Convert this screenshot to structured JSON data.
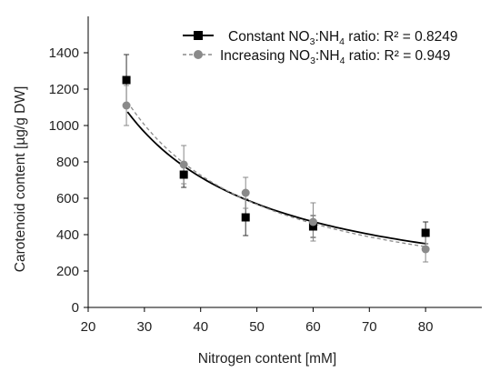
{
  "chart_data": {
    "type": "scatter",
    "xlabel": "Nitrogen content [mM]",
    "ylabel": "Carotenoid content [µg/g DW]",
    "xlim": [
      20,
      90
    ],
    "ylim": [
      0,
      1600
    ],
    "xticks": [
      20,
      30,
      40,
      50,
      60,
      70,
      80
    ],
    "yticks": [
      0,
      200,
      400,
      600,
      800,
      1000,
      1200,
      1400
    ],
    "grid": false,
    "legend_position": "top-right",
    "series": [
      {
        "name": "Constant NO3:NH4 ratio: R² = 0.8249",
        "legend": {
          "pre": "Constant NO",
          "sub1": "3",
          "mid": ":NH",
          "sub2": "4",
          "post": " ratio: R² = 0.8249"
        },
        "marker": "square",
        "color": "#000000",
        "trend_style": "solid",
        "trend_x": [
          27,
          80
        ],
        "points": [
          {
            "x": 26.8,
            "y": 1250,
            "err": 140
          },
          {
            "x": 37,
            "y": 730,
            "err": 70
          },
          {
            "x": 48,
            "y": 495,
            "err": 100
          },
          {
            "x": 60,
            "y": 445,
            "err": 60
          },
          {
            "x": 80,
            "y": 410,
            "err": 60
          }
        ]
      },
      {
        "name": "Increasing NO3:NH4 ratio: R² = 0.949",
        "legend": {
          "pre": "Increasing NO",
          "sub1": "3",
          "mid": ":NH",
          "sub2": "4",
          "post": " ratio: R² = 0.949"
        },
        "marker": "circle",
        "color": "#8a8a8a",
        "trend_style": "dashed",
        "trend_x": [
          27,
          80
        ],
        "points": [
          {
            "x": 26.8,
            "y": 1110,
            "err": 110
          },
          {
            "x": 37,
            "y": 785,
            "err": 105
          },
          {
            "x": 48,
            "y": 630,
            "err": 85
          },
          {
            "x": 60,
            "y": 470,
            "err": 105
          },
          {
            "x": 80,
            "y": 320,
            "err": 70
          }
        ]
      }
    ]
  }
}
